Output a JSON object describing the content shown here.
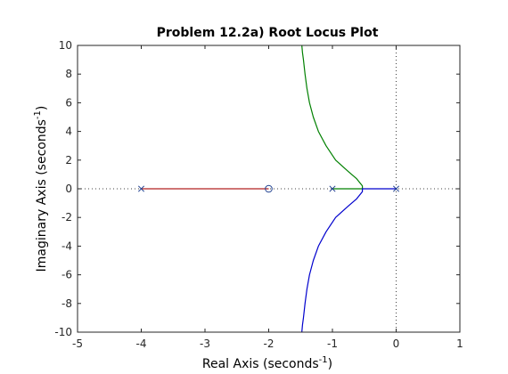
{
  "chart_data": {
    "type": "line",
    "title": "Problem 12.2a) Root Locus Plot",
    "xlabel": {
      "prefix": "Real Axis (seconds",
      "sup": "-1",
      "suffix": ")"
    },
    "ylabel": {
      "prefix": "Imaginary Axis (seconds",
      "sup": "-1",
      "suffix": ")"
    },
    "xlim": [
      -5,
      1
    ],
    "ylim": [
      -10,
      10
    ],
    "xticks": [
      -5,
      -4,
      -3,
      -2,
      -1,
      0,
      1
    ],
    "yticks": [
      -10,
      -8,
      -6,
      -4,
      -2,
      0,
      2,
      4,
      6,
      8,
      10
    ],
    "grid": false,
    "reference_lines": {
      "y": 0,
      "x": 0,
      "style": "dotted"
    },
    "poles": [
      [
        -4,
        0
      ],
      [
        -1,
        0
      ],
      [
        0,
        0
      ]
    ],
    "zeros": [
      [
        -2,
        0
      ]
    ],
    "series": [
      {
        "color": "#b22222",
        "x": [
          -4,
          -2
        ],
        "y": [
          0,
          0
        ]
      },
      {
        "color": "#008000",
        "x": [
          -1.0,
          -0.53,
          -0.53,
          -0.62,
          -0.75,
          -0.95,
          -1.1,
          -1.22,
          -1.3,
          -1.36,
          -1.4,
          -1.43,
          -1.455,
          -1.47,
          -1.48
        ],
        "y": [
          0,
          0,
          0.2,
          0.7,
          1.2,
          2.0,
          3.0,
          4.0,
          5.0,
          6.0,
          7.0,
          8.0,
          9.0,
          9.5,
          10
        ]
      },
      {
        "color": "#0000cd",
        "x": [
          0,
          -0.53,
          -0.53,
          -0.62,
          -0.75,
          -0.95,
          -1.1,
          -1.22,
          -1.3,
          -1.36,
          -1.4,
          -1.43,
          -1.455,
          -1.47,
          -1.48
        ],
        "y": [
          0,
          0,
          -0.2,
          -0.7,
          -1.2,
          -2.0,
          -3.0,
          -4.0,
          -5.0,
          -6.0,
          -7.0,
          -8.0,
          -9.0,
          -9.5,
          -10
        ]
      }
    ]
  }
}
